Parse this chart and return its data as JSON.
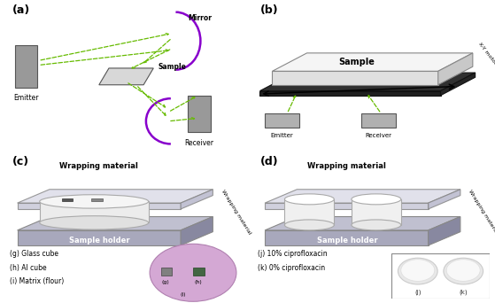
{
  "bg_color": "#ffffff",
  "label_a": "(a)",
  "label_b": "(b)",
  "label_c": "(c)",
  "label_d": "(d)",
  "emitter_text": "Emitter",
  "receiver_text": "Receiver",
  "mirror_text": "Mirror",
  "sample_text_a": "Sample",
  "sample_text_b": "Sample",
  "wrapping_mat": "Wrapping material",
  "sample_holder": "Sample holder",
  "xy_motor": "X-Y motor stage",
  "legend_g": "(g) Glass cube",
  "legend_h": "(h) Al cube",
  "legend_i": "(i) Matrix (flour)",
  "legend_j": "(j) 10% ciprofloxacin",
  "legend_k": "(k) 0% ciprofloxacin",
  "arrow_color": "#66bb00",
  "mirror_color": "#8800cc",
  "gray_emitter": "#999999",
  "dark_gray": "#555555",
  "light_gray": "#cccccc",
  "holder_face": "#a8a8bc",
  "holder_side": "#8888a0",
  "holder_top_face": "#c0c0d0",
  "wrap_top_face": "#dcdce8",
  "wrap_front_face": "#c8c8d8",
  "wrap_side_face": "#b8b8cc",
  "cyl_top": "#f0f0f0",
  "cyl_body": "#e8e8e8",
  "purple_oval": "#d4a8d4",
  "photo_bg": "#b8b8b0"
}
